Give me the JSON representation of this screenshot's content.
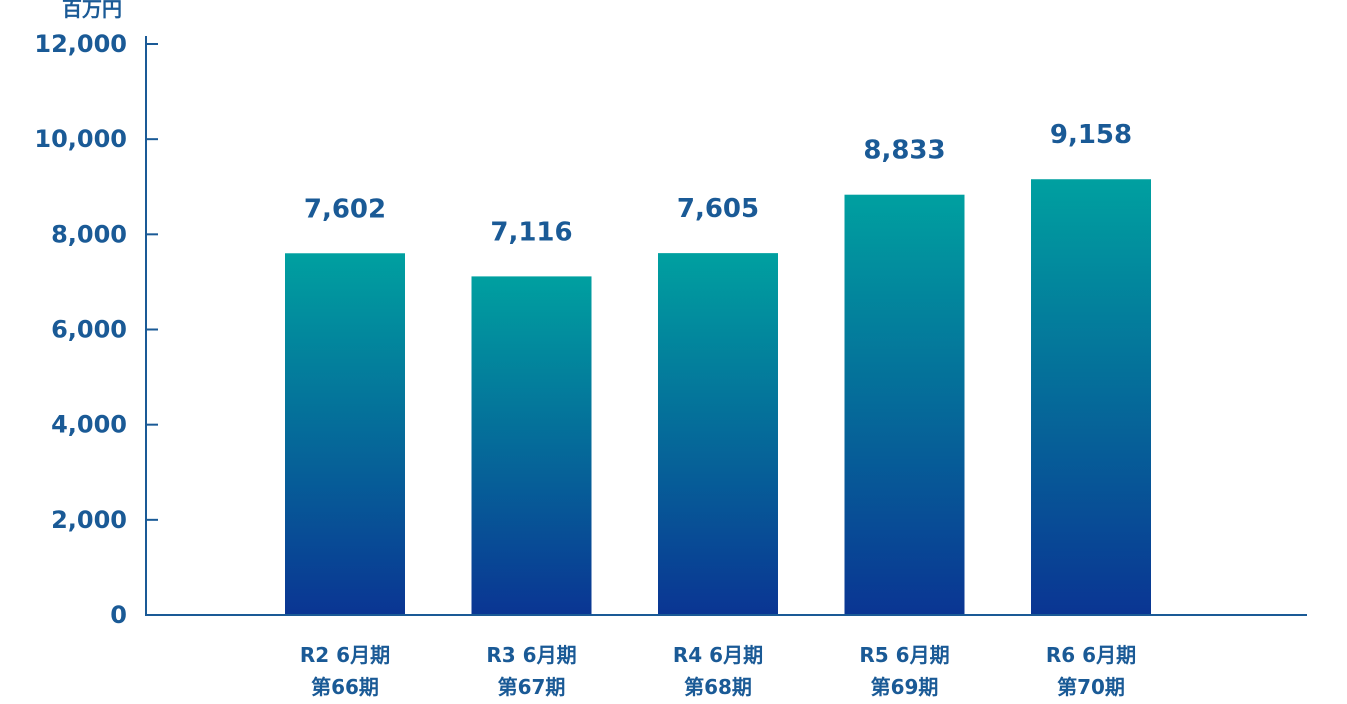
{
  "chart_data": {
    "type": "bar",
    "unit_label": "百万円",
    "categories": [
      {
        "line1": "R2 6月期",
        "line2": "第66期"
      },
      {
        "line1": "R3 6月期",
        "line2": "第67期"
      },
      {
        "line1": "R4 6月期",
        "line2": "第68期"
      },
      {
        "line1": "R5 6月期",
        "line2": "第69期"
      },
      {
        "line1": "R6 6月期",
        "line2": "第70期"
      }
    ],
    "values": [
      7602,
      7116,
      7605,
      8833,
      9158
    ],
    "value_labels": [
      "7,602",
      "7,116",
      "7,605",
      "8,833",
      "9,158"
    ],
    "ylim": [
      0,
      12000
    ],
    "yticks": [
      0,
      2000,
      4000,
      6000,
      8000,
      10000,
      12000
    ],
    "ytick_labels": [
      "0",
      "2,000",
      "4,000",
      "6,000",
      "8,000",
      "10,000",
      "12,000"
    ],
    "grid": false,
    "colors": {
      "axis": "#1a5a96",
      "text": "#1a5a96",
      "bar_top": "#00a0a0",
      "bar_bottom": "#0a3593"
    }
  }
}
